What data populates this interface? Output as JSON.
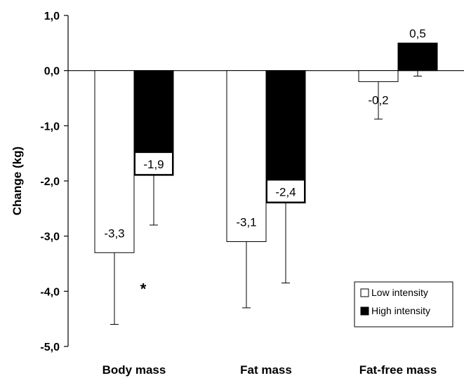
{
  "chart_data": {
    "type": "bar",
    "categories": [
      "Body mass",
      "Fat mass",
      "Fat-free mass"
    ],
    "ylabel": "Change (kg)",
    "ylim": [
      -5.0,
      1.0
    ],
    "yticks": [
      1.0,
      0.0,
      -1.0,
      -2.0,
      -3.0,
      -4.0,
      -5.0
    ],
    "ytick_labels": [
      "1,0",
      "0,0",
      "-1,0",
      "-2,0",
      "-3,0",
      "-4,0",
      "-5,0"
    ],
    "grid": false,
    "legend_position": "bottom-right",
    "series": [
      {
        "name": "Low intensity",
        "color": "#ffffff",
        "values": [
          -3.3,
          -3.1,
          -0.2
        ],
        "error": [
          1.3,
          1.2,
          0.68
        ],
        "labels": [
          "-3,3",
          "-3,1",
          "-0,2"
        ]
      },
      {
        "name": "High intensity",
        "color": "#000000",
        "values": [
          -1.9,
          -2.4,
          0.5
        ],
        "error": [
          0.9,
          1.45,
          0.6
        ],
        "labels": [
          "-1,9",
          "-2,4",
          "0,5"
        ]
      }
    ],
    "annotations": [
      {
        "text": "*",
        "category": "Body mass"
      }
    ]
  }
}
